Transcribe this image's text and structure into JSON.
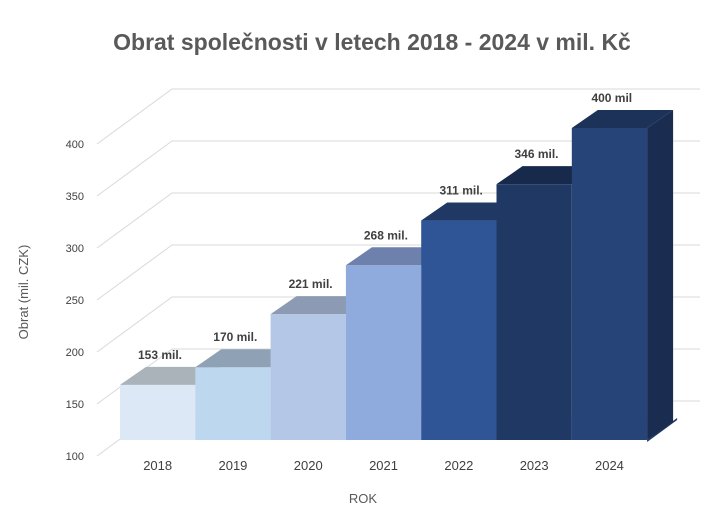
{
  "chart_data": {
    "type": "bar",
    "title": "Obrat společnosti v letech 2018 - 2024 v mil. Kč",
    "xlabel": "ROK",
    "ylabel": "Obrat (mil. CZK)",
    "categories": [
      "2018",
      "2019",
      "2020",
      "2021",
      "2022",
      "2023",
      "2024"
    ],
    "values": [
      153,
      170,
      221,
      268,
      311,
      346,
      400
    ],
    "data_labels": [
      "153 mil.",
      "170 mil.",
      "221 mil.",
      "268 mil.",
      "311 mil.",
      "346 mil.",
      "400 mil"
    ],
    "ylim": [
      100,
      400
    ],
    "yticks": [
      100,
      150,
      200,
      250,
      300,
      350,
      400
    ],
    "grid": true,
    "legend": "none",
    "style": "3d-column",
    "colors": {
      "front": [
        "#dde8f7",
        "#bdd7ee",
        "#b4c7e7",
        "#8faadc",
        "#2f5597",
        "#203864",
        "#264478"
      ],
      "top": [
        "#aab2ba",
        "#8fa2b5",
        "#8c9bb3",
        "#6e81ad",
        "#1f3864",
        "#182a4c",
        "#1c3259"
      ],
      "side": [
        "#1f3864",
        "#1f3864",
        "#1f3864",
        "#1f3864",
        "#1f3864",
        "#1a2d50",
        "#1a2d50"
      ],
      "floor": "#203864"
    }
  }
}
